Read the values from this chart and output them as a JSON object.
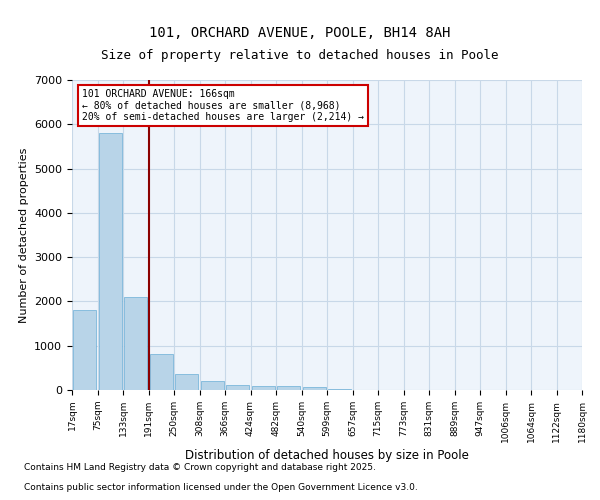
{
  "title": "101, ORCHARD AVENUE, POOLE, BH14 8AH",
  "subtitle": "Size of property relative to detached houses in Poole",
  "xlabel": "Distribution of detached houses by size in Poole",
  "ylabel": "Number of detached properties",
  "bin_labels": [
    "17sqm",
    "75sqm",
    "133sqm",
    "191sqm",
    "250sqm",
    "308sqm",
    "366sqm",
    "424sqm",
    "482sqm",
    "540sqm",
    "599sqm",
    "657sqm",
    "715sqm",
    "773sqm",
    "831sqm",
    "889sqm",
    "947sqm",
    "1006sqm",
    "1064sqm",
    "1122sqm",
    "1180sqm"
  ],
  "bar_values": [
    1800,
    5800,
    2100,
    820,
    370,
    210,
    120,
    90,
    80,
    60,
    30,
    10,
    5,
    3,
    2,
    1,
    1,
    0,
    0,
    0
  ],
  "bar_color": "#b8d4e8",
  "bar_edge_color": "#6aaed6",
  "grid_color": "#c8d8e8",
  "background_color": "#eef4fb",
  "red_line_x": 2.5,
  "annotation_text": "101 ORCHARD AVENUE: 166sqm\n← 80% of detached houses are smaller (8,968)\n20% of semi-detached houses are larger (2,214) →",
  "annotation_box_color": "#cc0000",
  "ylim": [
    0,
    7000
  ],
  "yticks": [
    0,
    1000,
    2000,
    3000,
    4000,
    5000,
    6000,
    7000
  ],
  "footnote1": "Contains HM Land Registry data © Crown copyright and database right 2025.",
  "footnote2": "Contains public sector information licensed under the Open Government Licence v3.0."
}
